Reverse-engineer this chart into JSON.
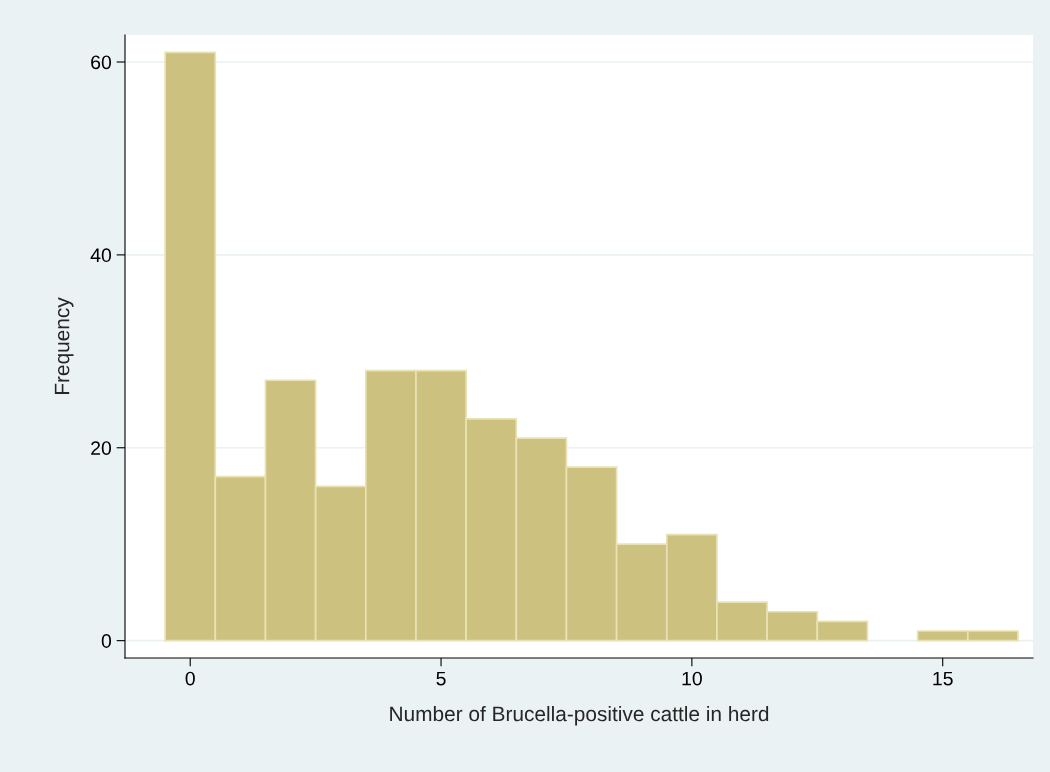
{
  "chart_data": {
    "type": "histogram",
    "xlabel": "Number of Brucella-positive cattle in herd",
    "ylabel": "Frequency",
    "bins": [
      -0.5,
      0.5,
      1.5,
      2.5,
      3.5,
      4.5,
      5.5,
      6.5,
      7.5,
      8.5,
      9.5,
      10.5,
      11.5,
      12.5,
      13.5,
      14.5,
      15.5,
      16.5
    ],
    "values": [
      61,
      17,
      27,
      16,
      28,
      28,
      23,
      21,
      18,
      10,
      11,
      4,
      3,
      2,
      0,
      1,
      1
    ],
    "color": "#cdc17f",
    "xlim": [
      -1.3,
      16.8
    ],
    "xticks": [
      0,
      5,
      10,
      15
    ],
    "ylim": [
      -1.8,
      62.8
    ],
    "yticks": [
      0,
      20,
      40,
      60
    ],
    "grid": "y"
  }
}
